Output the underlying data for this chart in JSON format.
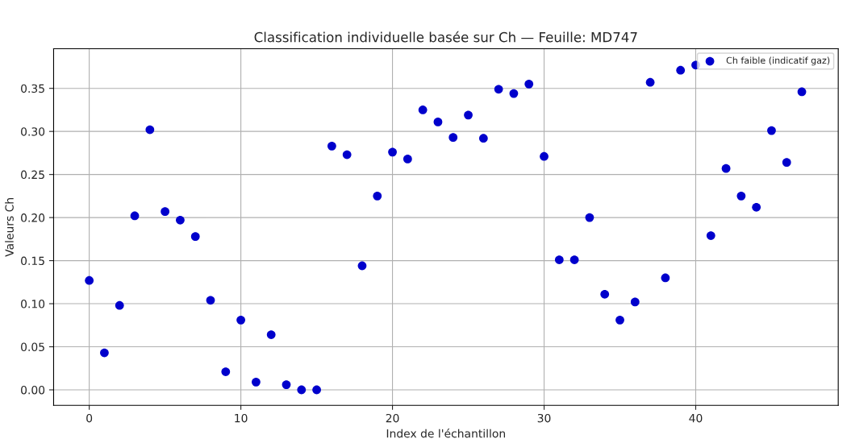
{
  "chart_data": {
    "type": "scatter",
    "title": "Classification individuelle basée sur Ch — Feuille: MD747",
    "xlabel": "Index de l'échantillon",
    "ylabel": "Valeurs Ch",
    "series": [
      {
        "name": "Ch faible (indicatif gaz)",
        "color": "#0000cc",
        "x": [
          0,
          1,
          2,
          3,
          4,
          5,
          6,
          7,
          8,
          9,
          10,
          11,
          12,
          13,
          14,
          15,
          16,
          17,
          18,
          19,
          20,
          21,
          22,
          23,
          24,
          25,
          26,
          27,
          28,
          29,
          30,
          31,
          32,
          33,
          34,
          35,
          36,
          37,
          38,
          39,
          40,
          41,
          42,
          43,
          44,
          45,
          46,
          47
        ],
        "values": [
          0.127,
          0.043,
          0.098,
          0.202,
          0.302,
          0.207,
          0.197,
          0.178,
          0.104,
          0.021,
          0.081,
          0.009,
          0.064,
          0.006,
          0.0,
          0.0,
          0.283,
          0.273,
          0.144,
          0.225,
          0.276,
          0.268,
          0.325,
          0.311,
          0.293,
          0.319,
          0.292,
          0.349,
          0.344,
          0.355,
          0.271,
          0.151,
          0.151,
          0.2,
          0.111,
          0.081,
          0.102,
          0.357,
          0.13,
          0.371,
          0.377,
          0.179,
          0.257,
          0.225,
          0.212,
          0.301,
          0.264,
          0.346
        ]
      }
    ],
    "xlim": [
      -2.35,
      49.4
    ],
    "xticks": [
      0,
      10,
      20,
      30,
      40
    ],
    "ylim": [
      -0.018,
      0.396
    ],
    "yticks": [
      {
        "value": 0,
        "label": "0.00"
      },
      {
        "value": 0.05,
        "label": "0.05"
      },
      {
        "value": 0.1,
        "label": "0.10"
      },
      {
        "value": 0.15,
        "label": "0.15"
      },
      {
        "value": 0.2,
        "label": "0.20"
      },
      {
        "value": 0.25,
        "label": "0.25"
      },
      {
        "value": 0.3,
        "label": "0.30"
      },
      {
        "value": 0.35,
        "label": "0.35"
      }
    ],
    "grid": true,
    "legend": "top right",
    "marker": "circle"
  }
}
